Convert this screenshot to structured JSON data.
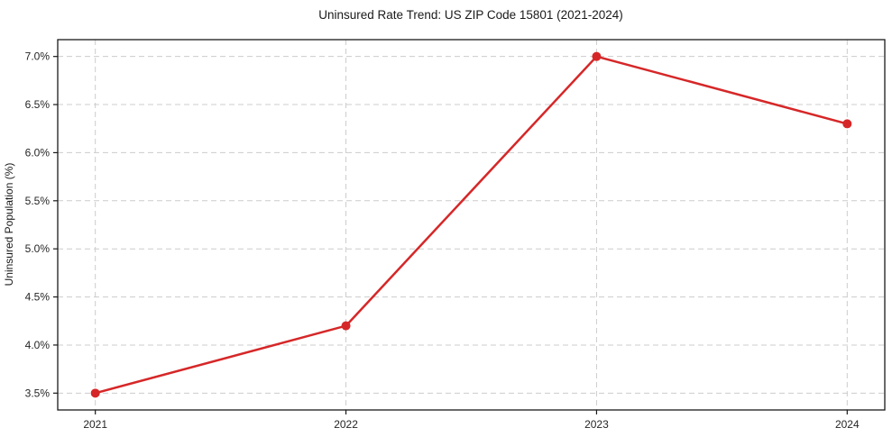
{
  "chart_data": {
    "type": "line",
    "title": "Uninsured Rate Trend: US ZIP Code 15801 (2021-2024)",
    "xlabel": "",
    "ylabel": "Uninsured Population (%)",
    "x": [
      2021,
      2022,
      2023,
      2024
    ],
    "x_tick_labels": [
      "2021",
      "2022",
      "2023",
      "2024"
    ],
    "series": [
      {
        "name": "uninsured-rate",
        "values": [
          3.5,
          4.2,
          7.0,
          6.3
        ],
        "color": "#d62728",
        "marker": "circle"
      }
    ],
    "y_ticks": [
      3.5,
      4.0,
      4.5,
      5.0,
      5.5,
      6.0,
      6.5,
      7.0
    ],
    "y_tick_labels": [
      "3.5%",
      "4.0%",
      "4.5%",
      "5.0%",
      "5.5%",
      "6.0%",
      "6.5%",
      "7.0%"
    ],
    "xlim": [
      2020.85,
      2024.15
    ],
    "ylim": [
      3.325,
      7.175
    ],
    "grid": true,
    "grid_style": "dashed",
    "legend_position": "none",
    "colors": {
      "line": "#d62728",
      "grid": "#cccccc",
      "axis": "#1a1a1a",
      "text": "#1a1a1a",
      "background": "#ffffff"
    }
  }
}
